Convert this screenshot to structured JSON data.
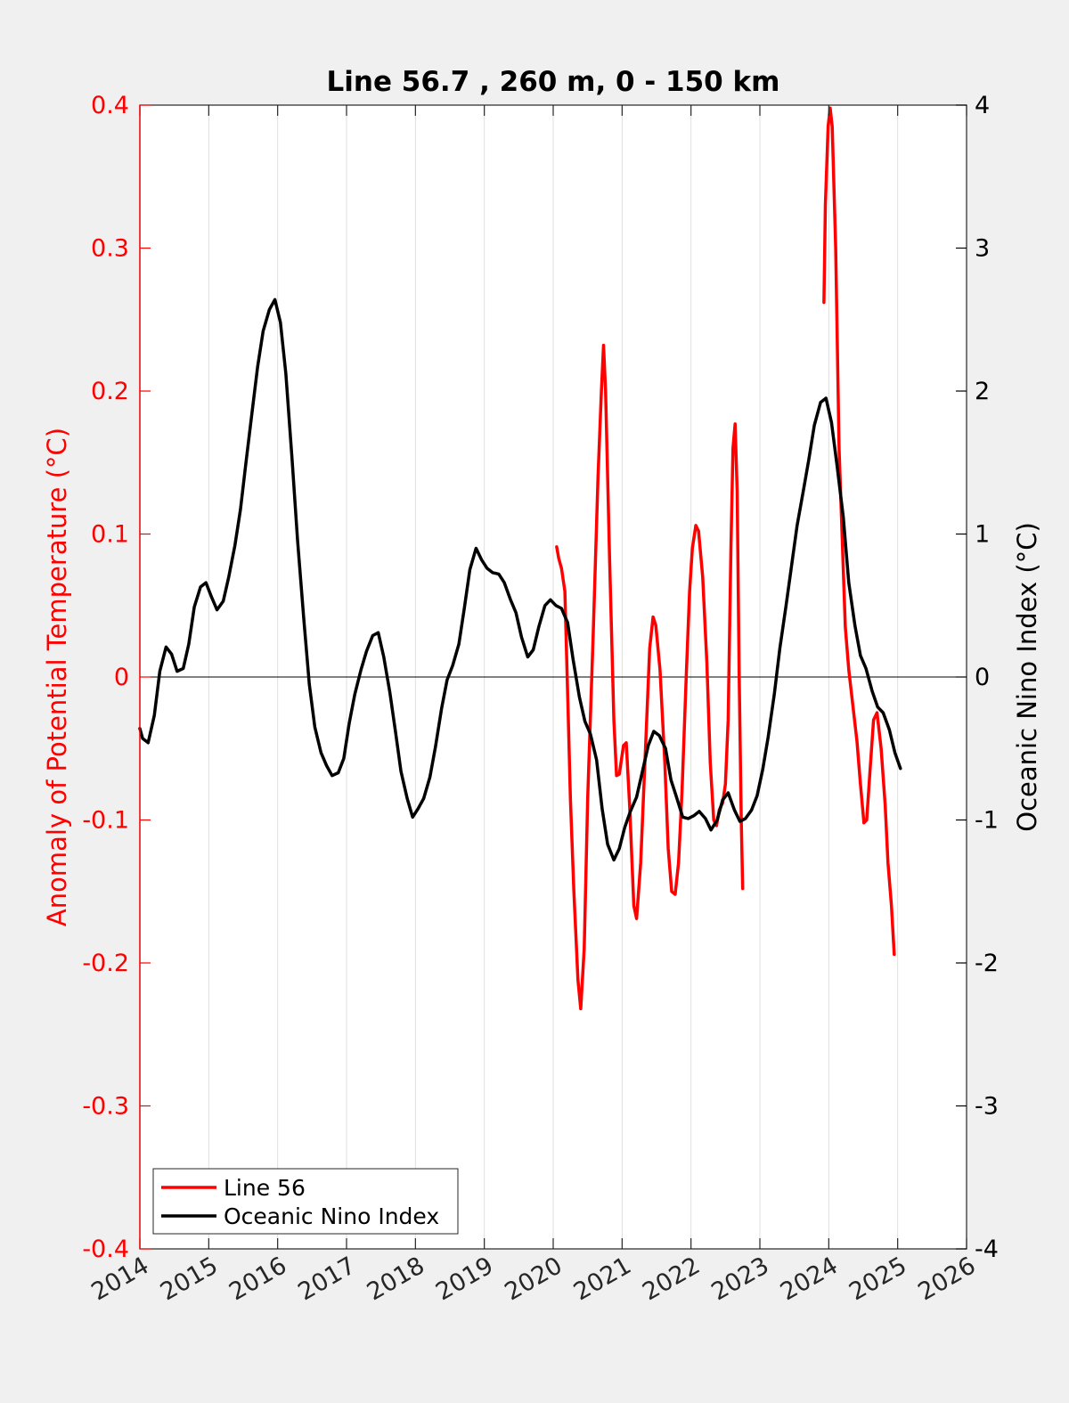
{
  "chart_data": {
    "type": "line",
    "title": "Line 56.7 , 260 m, 0 - 150 km",
    "xlabel": "",
    "ylabel_left": "Anomaly of Potential Temperature (°C)",
    "ylabel_right": "Oceanic Nino Index (°C)",
    "xlim": [
      2014,
      2026
    ],
    "ylim_left": [
      -0.4,
      0.4
    ],
    "ylim_right": [
      -4,
      4
    ],
    "x_ticks": [
      "2014",
      "2015",
      "2016",
      "2017",
      "2018",
      "2019",
      "2020",
      "2021",
      "2022",
      "2023",
      "2024",
      "2025",
      "2026"
    ],
    "y_left_ticks": [
      "-0.4",
      "-0.3",
      "-0.2",
      "-0.1",
      "0",
      "0.1",
      "0.2",
      "0.3",
      "0.4"
    ],
    "y_right_ticks": [
      "-4",
      "-3",
      "-2",
      "-1",
      "0",
      "1",
      "2",
      "3",
      "4"
    ],
    "grid": "vertical",
    "zero_line": true,
    "legend_position": "bottom-left",
    "colors": {
      "line56": "#ff0000",
      "oni": "#000000",
      "left_axis": "#ff0000",
      "right_axis": "#000000"
    },
    "series": [
      {
        "name": "Line 56",
        "axis": "left",
        "segments": [
          [
            [
              2020.05,
              0.091
            ],
            [
              2020.08,
              0.083
            ],
            [
              2020.12,
              0.076
            ],
            [
              2020.17,
              0.06
            ],
            [
              2020.22,
              -0.03
            ],
            [
              2020.25,
              -0.085
            ],
            [
              2020.3,
              -0.15
            ],
            [
              2020.36,
              -0.212
            ],
            [
              2020.4,
              -0.232
            ],
            [
              2020.45,
              -0.19
            ],
            [
              2020.5,
              -0.085
            ],
            [
              2020.58,
              0.03
            ],
            [
              2020.65,
              0.14
            ],
            [
              2020.7,
              0.2
            ],
            [
              2020.73,
              0.232
            ],
            [
              2020.76,
              0.2
            ],
            [
              2020.82,
              0.08
            ],
            [
              2020.88,
              -0.03
            ],
            [
              2020.92,
              -0.069
            ],
            [
              2020.96,
              -0.068
            ],
            [
              2021.02,
              -0.048
            ],
            [
              2021.06,
              -0.046
            ],
            [
              2021.11,
              -0.09
            ],
            [
              2021.17,
              -0.16
            ],
            [
              2021.21,
              -0.169
            ],
            [
              2021.27,
              -0.13
            ],
            [
              2021.34,
              -0.05
            ],
            [
              2021.4,
              0.02
            ],
            [
              2021.45,
              0.042
            ],
            [
              2021.49,
              0.036
            ],
            [
              2021.55,
              0.005
            ],
            [
              2021.62,
              -0.06
            ],
            [
              2021.67,
              -0.12
            ],
            [
              2021.72,
              -0.15
            ],
            [
              2021.77,
              -0.152
            ],
            [
              2021.82,
              -0.13
            ],
            [
              2021.87,
              -0.08
            ],
            [
              2021.93,
              0.0
            ],
            [
              2021.98,
              0.06
            ],
            [
              2022.02,
              0.09
            ],
            [
              2022.07,
              0.106
            ],
            [
              2022.11,
              0.102
            ],
            [
              2022.17,
              0.07
            ],
            [
              2022.23,
              0.01
            ],
            [
              2022.28,
              -0.06
            ],
            [
              2022.33,
              -0.1
            ],
            [
              2022.37,
              -0.104
            ],
            [
              2022.41,
              -0.093
            ],
            [
              2022.46,
              -0.088
            ],
            [
              2022.5,
              -0.075
            ],
            [
              2022.54,
              -0.03
            ],
            [
              2022.58,
              0.09
            ],
            [
              2022.61,
              0.16
            ],
            [
              2022.64,
              0.177
            ],
            [
              2022.67,
              0.13
            ],
            [
              2022.7,
              0.0
            ],
            [
              2022.73,
              -0.1
            ],
            [
              2022.75,
              -0.148
            ]
          ],
          [
            [
              2023.93,
              0.262
            ],
            [
              2023.95,
              0.33
            ],
            [
              2023.99,
              0.385
            ],
            [
              2024.02,
              0.398
            ],
            [
              2024.05,
              0.385
            ],
            [
              2024.1,
              0.3
            ],
            [
              2024.15,
              0.16
            ],
            [
              2024.2,
              0.09
            ],
            [
              2024.24,
              0.035
            ],
            [
              2024.29,
              0.005
            ],
            [
              2024.35,
              -0.02
            ],
            [
              2024.41,
              -0.045
            ],
            [
              2024.46,
              -0.075
            ],
            [
              2024.51,
              -0.102
            ],
            [
              2024.55,
              -0.1
            ],
            [
              2024.6,
              -0.065
            ],
            [
              2024.65,
              -0.03
            ],
            [
              2024.7,
              -0.025
            ],
            [
              2024.76,
              -0.05
            ],
            [
              2024.82,
              -0.09
            ],
            [
              2024.86,
              -0.13
            ],
            [
              2024.91,
              -0.16
            ],
            [
              2024.95,
              -0.194
            ]
          ]
        ]
      },
      {
        "name": "Oceanic Nino Index",
        "axis": "right",
        "segments": [
          [
            [
              2014.0,
              -0.36
            ],
            [
              2014.04,
              -0.43
            ],
            [
              2014.12,
              -0.46
            ],
            [
              2014.21,
              -0.27
            ],
            [
              2014.29,
              0.04
            ],
            [
              2014.38,
              0.21
            ],
            [
              2014.46,
              0.16
            ],
            [
              2014.54,
              0.04
            ],
            [
              2014.63,
              0.06
            ],
            [
              2014.71,
              0.23
            ],
            [
              2014.79,
              0.49
            ],
            [
              2014.88,
              0.63
            ],
            [
              2014.96,
              0.66
            ],
            [
              2015.04,
              0.56
            ],
            [
              2015.12,
              0.47
            ],
            [
              2015.21,
              0.53
            ],
            [
              2015.29,
              0.7
            ],
            [
              2015.38,
              0.92
            ],
            [
              2015.46,
              1.17
            ],
            [
              2015.54,
              1.5
            ],
            [
              2015.63,
              1.86
            ],
            [
              2015.71,
              2.17
            ],
            [
              2015.79,
              2.42
            ],
            [
              2015.88,
              2.57
            ],
            [
              2015.96,
              2.64
            ],
            [
              2016.04,
              2.48
            ],
            [
              2016.12,
              2.12
            ],
            [
              2016.21,
              1.52
            ],
            [
              2016.29,
              0.95
            ],
            [
              2016.38,
              0.4
            ],
            [
              2016.46,
              -0.05
            ],
            [
              2016.54,
              -0.35
            ],
            [
              2016.63,
              -0.53
            ],
            [
              2016.71,
              -0.62
            ],
            [
              2016.79,
              -0.69
            ],
            [
              2016.88,
              -0.67
            ],
            [
              2016.96,
              -0.57
            ],
            [
              2017.04,
              -0.32
            ],
            [
              2017.12,
              -0.12
            ],
            [
              2017.21,
              0.05
            ],
            [
              2017.29,
              0.18
            ],
            [
              2017.38,
              0.29
            ],
            [
              2017.46,
              0.31
            ],
            [
              2017.54,
              0.14
            ],
            [
              2017.63,
              -0.11
            ],
            [
              2017.71,
              -0.38
            ],
            [
              2017.79,
              -0.66
            ],
            [
              2017.88,
              -0.85
            ],
            [
              2017.96,
              -0.98
            ],
            [
              2018.04,
              -0.92
            ],
            [
              2018.12,
              -0.85
            ],
            [
              2018.21,
              -0.7
            ],
            [
              2018.29,
              -0.49
            ],
            [
              2018.38,
              -0.22
            ],
            [
              2018.46,
              -0.02
            ],
            [
              2018.54,
              0.08
            ],
            [
              2018.63,
              0.23
            ],
            [
              2018.71,
              0.48
            ],
            [
              2018.79,
              0.75
            ],
            [
              2018.88,
              0.9
            ],
            [
              2018.96,
              0.82
            ],
            [
              2019.04,
              0.76
            ],
            [
              2019.12,
              0.73
            ],
            [
              2019.21,
              0.72
            ],
            [
              2019.29,
              0.66
            ],
            [
              2019.38,
              0.54
            ],
            [
              2019.46,
              0.45
            ],
            [
              2019.54,
              0.28
            ],
            [
              2019.63,
              0.14
            ],
            [
              2019.71,
              0.19
            ],
            [
              2019.79,
              0.35
            ],
            [
              2019.88,
              0.5
            ],
            [
              2019.96,
              0.54
            ],
            [
              2020.04,
              0.5
            ],
            [
              2020.12,
              0.48
            ],
            [
              2020.21,
              0.38
            ],
            [
              2020.29,
              0.12
            ],
            [
              2020.38,
              -0.14
            ],
            [
              2020.46,
              -0.31
            ],
            [
              2020.54,
              -0.4
            ],
            [
              2020.63,
              -0.58
            ],
            [
              2020.71,
              -0.92
            ],
            [
              2020.79,
              -1.17
            ],
            [
              2020.88,
              -1.28
            ],
            [
              2020.96,
              -1.2
            ],
            [
              2021.04,
              -1.05
            ],
            [
              2021.12,
              -0.94
            ],
            [
              2021.21,
              -0.84
            ],
            [
              2021.29,
              -0.67
            ],
            [
              2021.38,
              -0.48
            ],
            [
              2021.46,
              -0.38
            ],
            [
              2021.54,
              -0.41
            ],
            [
              2021.63,
              -0.5
            ],
            [
              2021.71,
              -0.72
            ],
            [
              2021.79,
              -0.84
            ],
            [
              2021.88,
              -0.98
            ],
            [
              2021.96,
              -0.99
            ],
            [
              2022.04,
              -0.97
            ],
            [
              2022.12,
              -0.94
            ],
            [
              2022.21,
              -0.99
            ],
            [
              2022.29,
              -1.07
            ],
            [
              2022.38,
              -1.0
            ],
            [
              2022.46,
              -0.86
            ],
            [
              2022.54,
              -0.81
            ],
            [
              2022.63,
              -0.93
            ],
            [
              2022.71,
              -1.01
            ],
            [
              2022.79,
              -0.99
            ],
            [
              2022.88,
              -0.93
            ],
            [
              2022.96,
              -0.83
            ],
            [
              2023.04,
              -0.65
            ],
            [
              2023.12,
              -0.42
            ],
            [
              2023.21,
              -0.12
            ],
            [
              2023.29,
              0.2
            ],
            [
              2023.38,
              0.5
            ],
            [
              2023.46,
              0.78
            ],
            [
              2023.54,
              1.06
            ],
            [
              2023.63,
              1.3
            ],
            [
              2023.71,
              1.52
            ],
            [
              2023.79,
              1.76
            ],
            [
              2023.88,
              1.92
            ],
            [
              2023.96,
              1.95
            ],
            [
              2024.04,
              1.78
            ],
            [
              2024.12,
              1.48
            ],
            [
              2024.21,
              1.12
            ],
            [
              2024.29,
              0.66
            ],
            [
              2024.38,
              0.36
            ],
            [
              2024.46,
              0.15
            ],
            [
              2024.54,
              0.06
            ],
            [
              2024.63,
              -0.1
            ],
            [
              2024.71,
              -0.21
            ],
            [
              2024.79,
              -0.25
            ],
            [
              2024.88,
              -0.37
            ],
            [
              2024.96,
              -0.53
            ],
            [
              2025.04,
              -0.64
            ]
          ]
        ]
      }
    ]
  }
}
